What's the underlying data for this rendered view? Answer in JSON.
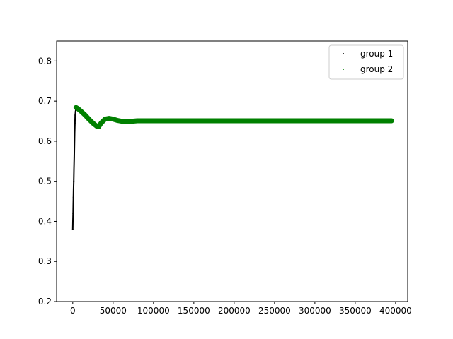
{
  "chart_data": {
    "type": "scatter",
    "title": "",
    "xlabel": "",
    "ylabel": "",
    "xlim": [
      -20000,
      415000
    ],
    "ylim": [
      0.2,
      0.85
    ],
    "x_ticks": [
      0,
      50000,
      100000,
      150000,
      200000,
      250000,
      300000,
      350000,
      400000
    ],
    "x_tick_labels": [
      "0",
      "50000",
      "100000",
      "150000",
      "200000",
      "250000",
      "300000",
      "350000",
      "400000"
    ],
    "y_ticks": [
      0.2,
      0.3,
      0.4,
      0.5,
      0.6,
      0.7,
      0.8
    ],
    "y_tick_labels": [
      "0.2",
      "0.3",
      "0.4",
      "0.5",
      "0.6",
      "0.7",
      "0.8"
    ],
    "grid": false,
    "legend_position": "top-right",
    "series": [
      {
        "name": "group 1",
        "color": "#000000",
        "x": [
          0,
          200,
          400,
          600,
          800,
          1000,
          1200,
          1500,
          1800,
          2100,
          2400,
          2700,
          3000,
          3500,
          4000
        ],
        "y": [
          0.38,
          0.4,
          0.42,
          0.44,
          0.46,
          0.48,
          0.5,
          0.53,
          0.56,
          0.59,
          0.62,
          0.645,
          0.665,
          0.675,
          0.682
        ]
      },
      {
        "name": "group 2",
        "color": "#008000",
        "x": [
          4000,
          6000,
          10000,
          15000,
          20000,
          25000,
          30000,
          32000,
          35000,
          40000,
          45000,
          50000,
          55000,
          60000,
          65000,
          70000,
          75000,
          80000,
          90000,
          100000,
          120000,
          150000,
          200000,
          250000,
          300000,
          350000,
          395000
        ],
        "y": [
          0.684,
          0.682,
          0.675,
          0.666,
          0.655,
          0.645,
          0.637,
          0.636,
          0.645,
          0.655,
          0.657,
          0.655,
          0.652,
          0.65,
          0.649,
          0.649,
          0.65,
          0.651,
          0.651,
          0.651,
          0.651,
          0.651,
          0.651,
          0.651,
          0.651,
          0.651,
          0.651
        ]
      }
    ]
  }
}
